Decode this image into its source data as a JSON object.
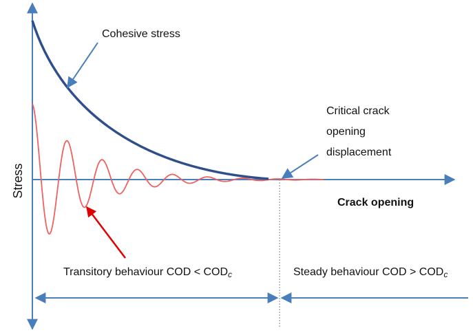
{
  "labels": {
    "cohesive_stress": "Cohesive stress",
    "critical": [
      "Critical crack",
      "opening",
      "displacement"
    ],
    "y_axis": "Stress",
    "x_axis": "Crack opening",
    "transitory": {
      "text": "Transitory behaviour COD < COD",
      "sub": "c"
    },
    "steady": {
      "text": "Steady behaviour COD > COD",
      "sub": "c"
    }
  }
}
